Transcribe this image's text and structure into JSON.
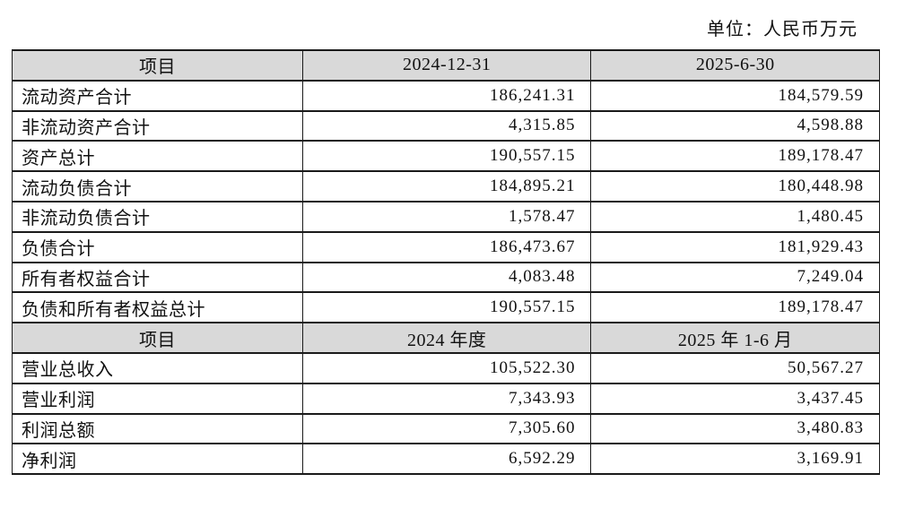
{
  "page": {
    "unit_label": "单位：人民币万元"
  },
  "colors": {
    "header_bg": "#d9d9d9",
    "border": "#1a1a1a",
    "text": "#111111"
  },
  "balance_table": {
    "headers": {
      "item": "项目",
      "col1": "2024-12-31",
      "col2": "2025-6-30"
    },
    "rows": [
      {
        "item": "流动资产合计",
        "col1": "186,241.31",
        "col2": "184,579.59"
      },
      {
        "item": "非流动资产合计",
        "col1": "4,315.85",
        "col2": "4,598.88"
      },
      {
        "item": "资产总计",
        "col1": "190,557.15",
        "col2": "189,178.47"
      },
      {
        "item": "流动负债合计",
        "col1": "184,895.21",
        "col2": "180,448.98"
      },
      {
        "item": "非流动负债合计",
        "col1": "1,578.47",
        "col2": "1,480.45"
      },
      {
        "item": "负债合计",
        "col1": "186,473.67",
        "col2": "181,929.43"
      },
      {
        "item": "所有者权益合计",
        "col1": "4,083.48",
        "col2": "7,249.04"
      },
      {
        "item": "负债和所有者权益总计",
        "col1": "190,557.15",
        "col2": "189,178.47"
      }
    ]
  },
  "income_table": {
    "headers": {
      "item": "项目",
      "col1": "2024 年度",
      "col2": "2025 年 1-6 月"
    },
    "rows": [
      {
        "item": "营业总收入",
        "col1": "105,522.30",
        "col2": "50,567.27"
      },
      {
        "item": "营业利润",
        "col1": "7,343.93",
        "col2": "3,437.45"
      },
      {
        "item": "利润总额",
        "col1": "7,305.60",
        "col2": "3,480.83"
      },
      {
        "item": "净利润",
        "col1": "6,592.29",
        "col2": "3,169.91"
      }
    ]
  }
}
